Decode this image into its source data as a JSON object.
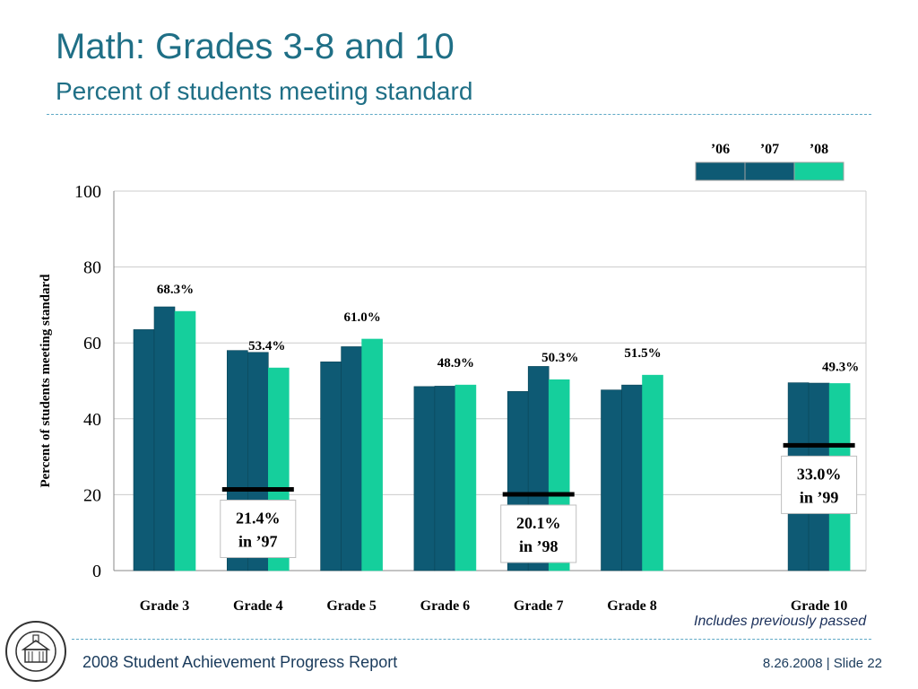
{
  "header": {
    "title": "Math: Grades 3-8 and 10",
    "subtitle": "Percent of students meeting standard"
  },
  "footer": {
    "report": "2008 Student Achievement Progress Report",
    "date_slide": "8.26.2008  |  Slide 22",
    "note": "Includes previously passed"
  },
  "colors": {
    "y06": "#0e5a74",
    "y07": "#0e5a74",
    "y08": "#15cf9c",
    "baseline": "#000000",
    "axis": "#888888",
    "grid": "#cccccc"
  },
  "chart_data": {
    "type": "bar",
    "ylabel": "Percent of students meeting standard",
    "ylim": [
      0,
      100
    ],
    "yticks": [
      "0",
      "20",
      "40",
      "60",
      "80",
      "100"
    ],
    "categories": [
      "Grade 3",
      "Grade 4",
      "Grade 5",
      "Grade 6",
      "Grade 7",
      "Grade 8",
      "Grade 10"
    ],
    "series": [
      {
        "name": "’06",
        "values": [
          63.5,
          58.0,
          55.0,
          48.5,
          47.2,
          47.6,
          49.5
        ]
      },
      {
        "name": "’07",
        "values": [
          69.5,
          57.5,
          59.0,
          48.6,
          53.8,
          48.9,
          49.4
        ]
      },
      {
        "name": "’08",
        "values": [
          68.3,
          53.4,
          61.0,
          48.9,
          50.3,
          51.5,
          49.3
        ]
      }
    ],
    "value_labels": [
      "68.3%",
      "53.4%",
      "61.0%",
      "48.9%",
      "50.3%",
      "51.5%",
      "49.3%"
    ],
    "baselines": [
      {
        "category": "Grade 4",
        "value": 21.4,
        "label_line1": "21.4%",
        "label_line2": "in ’97"
      },
      {
        "category": "Grade 7",
        "value": 20.1,
        "label_line1": "20.1%",
        "label_line2": "in ’98"
      },
      {
        "category": "Grade 10",
        "value": 33.0,
        "label_line1": "33.0%",
        "label_line2": "in ’99"
      }
    ],
    "legend_position": "top-right",
    "grid": true
  }
}
